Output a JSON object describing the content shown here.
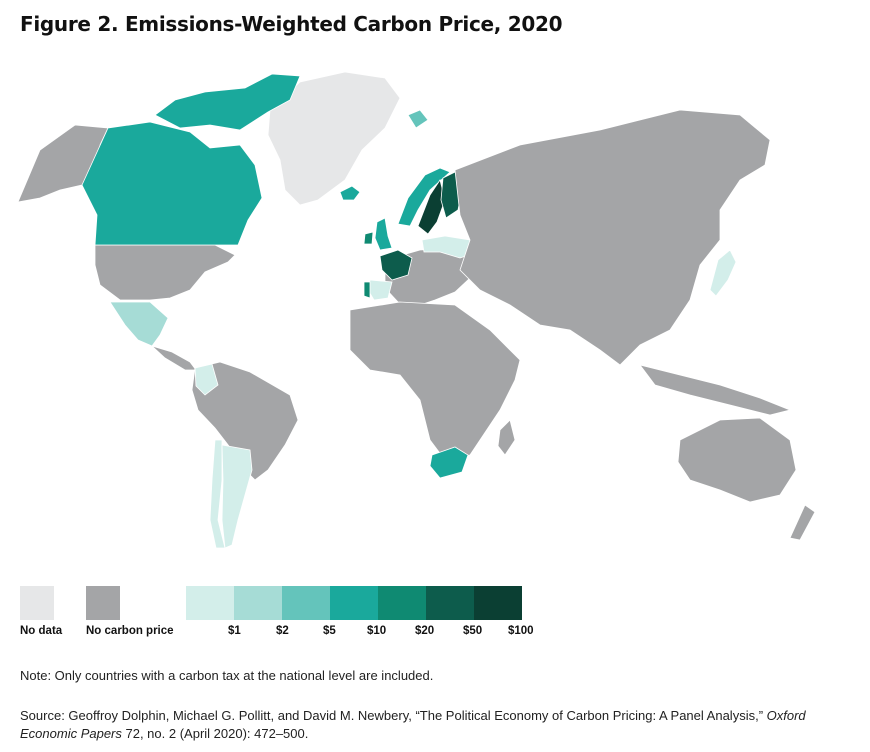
{
  "title": "Figure 2. Emissions-Weighted Carbon Price, 2020",
  "colors": {
    "no_data": "#e6e7e8",
    "no_carbon_price": "#a4a5a7",
    "ocean": "#ffffff",
    "border": "#ffffff"
  },
  "legend": {
    "no_data_label": "No data",
    "no_carbon_price_label": "No carbon price",
    "scale": [
      {
        "label": "$1",
        "color": "#d3eeea"
      },
      {
        "label": "$2",
        "color": "#a6dcd6"
      },
      {
        "label": "$5",
        "color": "#64c4bb"
      },
      {
        "label": "$10",
        "color": "#1aa99c"
      },
      {
        "label": "$20",
        "color": "#0f8a72"
      },
      {
        "label": "$50",
        "color": "#0d5c4c"
      },
      {
        "label": "$100",
        "color": "#0b3f33"
      }
    ]
  },
  "regions": [
    {
      "name": "Canada",
      "category": "$10"
    },
    {
      "name": "Mexico",
      "category": "$2"
    },
    {
      "name": "Colombia",
      "category": "$1"
    },
    {
      "name": "Chile",
      "category": "$1"
    },
    {
      "name": "Argentina",
      "category": "$1"
    },
    {
      "name": "Greenland",
      "category": "No data"
    },
    {
      "name": "Iceland",
      "category": "$10"
    },
    {
      "name": "Norway",
      "category": "$10"
    },
    {
      "name": "Sweden",
      "category": "$100"
    },
    {
      "name": "Finland",
      "category": "$50"
    },
    {
      "name": "United Kingdom",
      "category": "$10"
    },
    {
      "name": "Ireland",
      "category": "$20"
    },
    {
      "name": "France",
      "category": "$50"
    },
    {
      "name": "Portugal",
      "category": "$20"
    },
    {
      "name": "Spain",
      "category": "$1"
    },
    {
      "name": "Denmark",
      "category": "$10"
    },
    {
      "name": "Switzerland",
      "category": "$20"
    },
    {
      "name": "Poland",
      "category": "$1"
    },
    {
      "name": "Ukraine",
      "category": "$1"
    },
    {
      "name": "Latvia",
      "category": "$5"
    },
    {
      "name": "Estonia",
      "category": "$1"
    },
    {
      "name": "Svalbard",
      "category": "$5"
    },
    {
      "name": "Japan",
      "category": "$1"
    },
    {
      "name": "South Africa",
      "category": "$10"
    }
  ],
  "note": "Note: Only countries with a carbon tax at the national level are included.",
  "source": {
    "prefix": "Source: Geoffroy Dolphin, Michael G. Pollitt, and David M. Newbery, “The Political Economy of Carbon Pricing: A Panel Analysis,” ",
    "journal": "Oxford Economic Papers",
    "suffix": " 72, no. 2 (April 2020): 472–500."
  }
}
